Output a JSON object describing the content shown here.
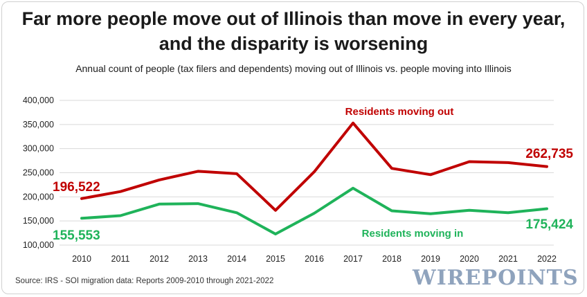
{
  "title_line1": "Far more people move out of Illinois than move in every year,",
  "title_line2": "and the disparity is worsening",
  "subtitle": "Annual count of people (tax filers and dependents) moving out of Illinois vs. people moving into Illinois",
  "source": "Source: IRS - SOI migration data: Reports 2009-2010 through 2021-2022",
  "logo": "WIREPOINTS",
  "chart_data": {
    "type": "line",
    "categories": [
      "2010",
      "2011",
      "2012",
      "2013",
      "2014",
      "2015",
      "2016",
      "2017",
      "2018",
      "2019",
      "2020",
      "2021",
      "2022"
    ],
    "ylim": [
      100000,
      400000
    ],
    "yticks": [
      "100,000",
      "150,000",
      "200,000",
      "250,000",
      "300,000",
      "350,000",
      "400,000"
    ],
    "ytick_values": [
      100000,
      150000,
      200000,
      250000,
      300000,
      350000,
      400000
    ],
    "grid": true,
    "series": [
      {
        "name": "Residents moving out",
        "color": "#c00000",
        "values": [
          196522,
          211000,
          235000,
          253000,
          248000,
          172000,
          252000,
          353000,
          259000,
          246000,
          273000,
          271000,
          262735
        ],
        "start_label": "196,522",
        "end_label": "262,735"
      },
      {
        "name": "Residents moving in",
        "color": "#1fb35a",
        "values": [
          155553,
          161000,
          185000,
          186000,
          167000,
          123000,
          166000,
          218000,
          171000,
          165000,
          172000,
          167000,
          175424
        ],
        "start_label": "155,553",
        "end_label": "175,424"
      }
    ]
  }
}
